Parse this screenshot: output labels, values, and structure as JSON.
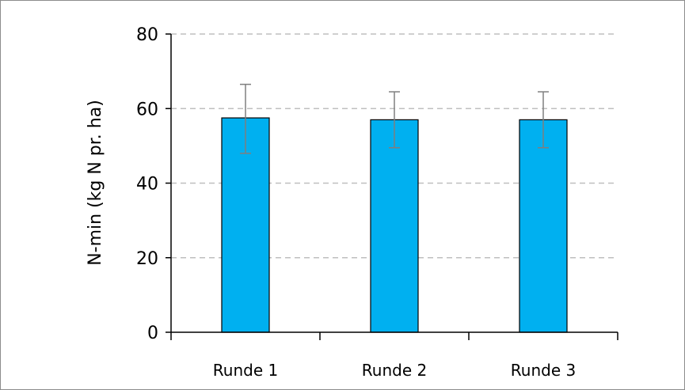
{
  "chart_data": {
    "type": "bar",
    "title": "",
    "xlabel": "",
    "ylabel": "N-min (kg N pr. ha)",
    "categories": [
      "Runde 1",
      "Runde 2",
      "Runde 3"
    ],
    "values": [
      57.5,
      57,
      57
    ],
    "error_low": [
      48,
      49.5,
      49.5
    ],
    "error_high": [
      66.5,
      64.5,
      64.5
    ],
    "ylim": [
      0,
      80
    ],
    "yticks": [
      0,
      20,
      40,
      60,
      80
    ],
    "grid": true,
    "bar_color": "#00b0f0",
    "bar_edge_color": "#000000",
    "error_bar_color": "#7f7f7f",
    "grid_color": "#bfbfbf"
  }
}
